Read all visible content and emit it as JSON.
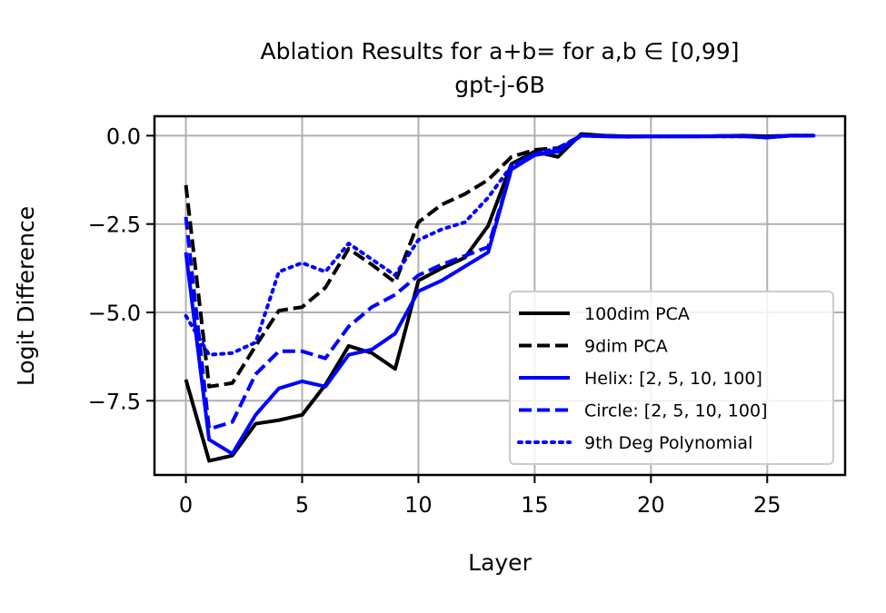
{
  "chart_data": {
    "type": "line",
    "title": "Ablation Results for a+b= for a,b ∈ [0,99]",
    "subtitle": "gpt-j-6B",
    "xlabel": "Layer",
    "ylabel": "Logit Difference",
    "xlim": [
      -1.35,
      28.35
    ],
    "ylim": [
      -9.6,
      0.55
    ],
    "xticks": [
      0,
      5,
      10,
      15,
      20,
      25
    ],
    "yticks": [
      0.0,
      -2.5,
      -5.0,
      -7.5
    ],
    "xtick_labels": [
      "0",
      "5",
      "10",
      "15",
      "20",
      "25"
    ],
    "ytick_labels": [
      "0.0",
      "−2.5",
      "−5.0",
      "−7.5"
    ],
    "grid": true,
    "legend_position": "lower-right",
    "x": [
      0,
      1,
      2,
      3,
      4,
      5,
      6,
      7,
      8,
      9,
      10,
      11,
      12,
      13,
      14,
      15,
      16,
      17,
      18,
      19,
      20,
      21,
      22,
      23,
      24,
      25,
      26,
      27
    ],
    "series": [
      {
        "name": "100dim PCA",
        "color": "#000000",
        "dash": "solid",
        "values": [
          -6.9,
          -9.2,
          -9.05,
          -8.15,
          -8.05,
          -7.9,
          -7.05,
          -5.95,
          -6.15,
          -6.6,
          -4.1,
          -3.75,
          -3.45,
          -2.55,
          -0.8,
          -0.45,
          -0.6,
          0.05,
          0.0,
          -0.02,
          -0.02,
          -0.02,
          -0.02,
          -0.01,
          0.0,
          -0.02,
          0.0,
          0.0
        ]
      },
      {
        "name": "9dim PCA",
        "color": "#000000",
        "dash": "dashed",
        "values": [
          -1.4,
          -7.1,
          -7.0,
          -5.95,
          -4.95,
          -4.85,
          -4.3,
          -3.2,
          -3.65,
          -4.15,
          -2.45,
          -1.95,
          -1.65,
          -1.25,
          -0.6,
          -0.4,
          -0.35,
          0.0,
          0.0,
          -0.02,
          -0.02,
          -0.02,
          -0.02,
          -0.01,
          0.0,
          -0.02,
          0.0,
          0.0
        ]
      },
      {
        "name": "Helix: [2, 5, 10, 100]",
        "color": "#0000ff",
        "dash": "solid",
        "values": [
          -3.3,
          -8.6,
          -9.0,
          -7.9,
          -7.15,
          -6.95,
          -7.1,
          -6.2,
          -6.05,
          -5.6,
          -4.4,
          -4.1,
          -3.7,
          -3.3,
          -0.95,
          -0.55,
          -0.45,
          0.0,
          -0.02,
          -0.03,
          -0.02,
          -0.02,
          -0.02,
          -0.02,
          -0.02,
          -0.05,
          0.0,
          0.0
        ]
      },
      {
        "name": "Circle: [2, 5, 10, 100]",
        "color": "#0000ff",
        "dash": "dashed",
        "values": [
          -2.3,
          -8.3,
          -8.1,
          -6.75,
          -6.1,
          -6.1,
          -6.3,
          -5.4,
          -4.85,
          -4.5,
          -3.95,
          -3.65,
          -3.4,
          -3.15,
          -0.95,
          -0.55,
          -0.4,
          0.0,
          -0.02,
          -0.03,
          -0.02,
          -0.02,
          -0.02,
          -0.02,
          -0.02,
          -0.05,
          0.0,
          0.0
        ]
      },
      {
        "name": "9th Deg Polynomial",
        "color": "#0000ff",
        "dash": "dotted",
        "values": [
          -5.1,
          -6.2,
          -6.15,
          -5.85,
          -3.85,
          -3.6,
          -3.85,
          -3.05,
          -3.5,
          -3.95,
          -2.95,
          -2.65,
          -2.45,
          -1.75,
          -0.85,
          -0.5,
          -0.35,
          0.0,
          -0.02,
          -0.03,
          -0.02,
          -0.02,
          -0.02,
          -0.02,
          -0.02,
          -0.05,
          0.0,
          0.0
        ]
      }
    ]
  }
}
